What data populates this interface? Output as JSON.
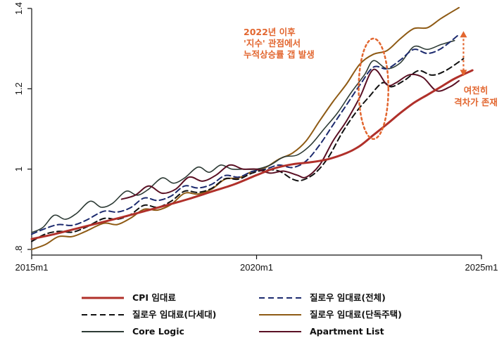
{
  "chart_data": {
    "type": "line",
    "xlim": [
      2015.0,
      2025.0
    ],
    "ylim": [
      0.8,
      1.4
    ],
    "xticks": [
      {
        "value": 2015.0,
        "label": "2015m1"
      },
      {
        "value": 2020.0,
        "label": "2020m1"
      },
      {
        "value": 2025.0,
        "label": "2025m1"
      }
    ],
    "yticks": [
      {
        "value": 0.8,
        "label": ".8"
      },
      {
        "value": 1.0,
        "label": "1"
      },
      {
        "value": 1.2,
        "label": "1.2"
      },
      {
        "value": 1.4,
        "label": "1.4"
      }
    ],
    "grid": false,
    "legend_position": "bottom",
    "series": [
      {
        "name": "CPI 임대료",
        "color": "#b0302a",
        "dash": "solid",
        "width": 3,
        "points": [
          [
            2015.0,
            0.826
          ],
          [
            2015.5,
            0.838
          ],
          [
            2016.0,
            0.852
          ],
          [
            2016.5,
            0.866
          ],
          [
            2017.0,
            0.88
          ],
          [
            2017.5,
            0.895
          ],
          [
            2018.0,
            0.91
          ],
          [
            2018.5,
            0.926
          ],
          [
            2019.0,
            0.944
          ],
          [
            2019.5,
            0.962
          ],
          [
            2020.0,
            0.985
          ],
          [
            2020.4,
            1.002
          ],
          [
            2020.8,
            1.012
          ],
          [
            2021.2,
            1.017
          ],
          [
            2021.6,
            1.025
          ],
          [
            2022.0,
            1.04
          ],
          [
            2022.3,
            1.058
          ],
          [
            2022.6,
            1.085
          ],
          [
            2022.9,
            1.112
          ],
          [
            2023.2,
            1.14
          ],
          [
            2023.5,
            1.165
          ],
          [
            2023.8,
            1.185
          ],
          [
            2024.1,
            1.205
          ],
          [
            2024.4,
            1.225
          ],
          [
            2024.8,
            1.246
          ]
        ]
      },
      {
        "name": "질로우 임대료(전체)",
        "color": "#1c2a6e",
        "dash": "8,5",
        "width": 2,
        "points": [
          [
            2015.0,
            0.838
          ],
          [
            2015.3,
            0.852
          ],
          [
            2015.6,
            0.862
          ],
          [
            2015.9,
            0.86
          ],
          [
            2016.2,
            0.872
          ],
          [
            2016.6,
            0.895
          ],
          [
            2016.9,
            0.893
          ],
          [
            2017.2,
            0.904
          ],
          [
            2017.5,
            0.928
          ],
          [
            2017.8,
            0.922
          ],
          [
            2018.1,
            0.933
          ],
          [
            2018.4,
            0.958
          ],
          [
            2018.7,
            0.953
          ],
          [
            2019.0,
            0.962
          ],
          [
            2019.3,
            0.984
          ],
          [
            2019.6,
            0.98
          ],
          [
            2019.9,
            0.994
          ],
          [
            2020.2,
            1.0
          ],
          [
            2020.5,
            1.01
          ],
          [
            2020.8,
            1.004
          ],
          [
            2021.1,
            1.02
          ],
          [
            2021.4,
            1.06
          ],
          [
            2021.7,
            1.11
          ],
          [
            2022.0,
            1.16
          ],
          [
            2022.3,
            1.21
          ],
          [
            2022.6,
            1.254
          ],
          [
            2022.9,
            1.25
          ],
          [
            2023.2,
            1.272
          ],
          [
            2023.5,
            1.298
          ],
          [
            2023.8,
            1.288
          ],
          [
            2024.1,
            1.3
          ],
          [
            2024.5,
            1.335
          ]
        ]
      },
      {
        "name": "질로우 임대료(다세대)",
        "color": "#111111",
        "dash": "8,5",
        "width": 2,
        "points": [
          [
            2015.0,
            0.82
          ],
          [
            2015.3,
            0.838
          ],
          [
            2015.6,
            0.845
          ],
          [
            2015.9,
            0.843
          ],
          [
            2016.2,
            0.855
          ],
          [
            2016.6,
            0.877
          ],
          [
            2016.9,
            0.875
          ],
          [
            2017.2,
            0.887
          ],
          [
            2017.5,
            0.91
          ],
          [
            2017.8,
            0.905
          ],
          [
            2018.1,
            0.92
          ],
          [
            2018.4,
            0.945
          ],
          [
            2018.7,
            0.942
          ],
          [
            2019.0,
            0.952
          ],
          [
            2019.3,
            0.976
          ],
          [
            2019.6,
            0.975
          ],
          [
            2019.9,
            0.99
          ],
          [
            2020.2,
            0.998
          ],
          [
            2020.5,
            0.995
          ],
          [
            2020.8,
            0.975
          ],
          [
            2021.0,
            0.972
          ],
          [
            2021.3,
            0.99
          ],
          [
            2021.6,
            1.03
          ],
          [
            2021.9,
            1.09
          ],
          [
            2022.2,
            1.14
          ],
          [
            2022.5,
            1.18
          ],
          [
            2022.8,
            1.215
          ],
          [
            2023.0,
            1.205
          ],
          [
            2023.3,
            1.222
          ],
          [
            2023.6,
            1.245
          ],
          [
            2023.9,
            1.234
          ],
          [
            2024.2,
            1.245
          ],
          [
            2024.6,
            1.275
          ]
        ]
      },
      {
        "name": "질로우 임대료(단독주택)",
        "color": "#8e5a14",
        "dash": "solid",
        "width": 2,
        "points": [
          [
            2015.0,
            0.8
          ],
          [
            2015.3,
            0.812
          ],
          [
            2015.6,
            0.832
          ],
          [
            2015.9,
            0.832
          ],
          [
            2016.2,
            0.845
          ],
          [
            2016.6,
            0.865
          ],
          [
            2016.9,
            0.862
          ],
          [
            2017.2,
            0.878
          ],
          [
            2017.5,
            0.9
          ],
          [
            2017.8,
            0.898
          ],
          [
            2018.1,
            0.912
          ],
          [
            2018.4,
            0.94
          ],
          [
            2018.7,
            0.938
          ],
          [
            2019.0,
            0.95
          ],
          [
            2019.3,
            0.975
          ],
          [
            2019.6,
            0.978
          ],
          [
            2019.9,
            0.994
          ],
          [
            2020.2,
            1.004
          ],
          [
            2020.5,
            1.025
          ],
          [
            2020.8,
            1.04
          ],
          [
            2021.1,
            1.07
          ],
          [
            2021.4,
            1.12
          ],
          [
            2021.7,
            1.168
          ],
          [
            2022.0,
            1.212
          ],
          [
            2022.3,
            1.262
          ],
          [
            2022.6,
            1.286
          ],
          [
            2022.9,
            1.295
          ],
          [
            2023.2,
            1.325
          ],
          [
            2023.5,
            1.35
          ],
          [
            2023.8,
            1.352
          ],
          [
            2024.1,
            1.375
          ],
          [
            2024.5,
            1.402
          ]
        ]
      },
      {
        "name": "Core Logic",
        "color": "#2d3b35",
        "dash": "solid",
        "width": 1.6,
        "points": [
          [
            2015.0,
            0.842
          ],
          [
            2015.25,
            0.855
          ],
          [
            2015.5,
            0.885
          ],
          [
            2015.75,
            0.875
          ],
          [
            2016.0,
            0.89
          ],
          [
            2016.3,
            0.92
          ],
          [
            2016.55,
            0.905
          ],
          [
            2016.8,
            0.915
          ],
          [
            2017.1,
            0.945
          ],
          [
            2017.35,
            0.935
          ],
          [
            2017.6,
            0.95
          ],
          [
            2017.9,
            0.978
          ],
          [
            2018.15,
            0.965
          ],
          [
            2018.4,
            0.978
          ],
          [
            2018.7,
            1.005
          ],
          [
            2018.95,
            0.992
          ],
          [
            2019.2,
            1.01
          ],
          [
            2019.45,
            1.0
          ],
          [
            2019.7,
            1.0
          ],
          [
            2020.0,
            1.0
          ],
          [
            2020.3,
            1.01
          ],
          [
            2020.6,
            1.03
          ],
          [
            2020.9,
            1.035
          ],
          [
            2021.2,
            1.06
          ],
          [
            2021.5,
            1.1
          ],
          [
            2021.8,
            1.14
          ],
          [
            2022.1,
            1.19
          ],
          [
            2022.4,
            1.235
          ],
          [
            2022.6,
            1.27
          ],
          [
            2022.9,
            1.25
          ],
          [
            2023.2,
            1.265
          ],
          [
            2023.5,
            1.305
          ],
          [
            2023.8,
            1.298
          ],
          [
            2024.1,
            1.31
          ],
          [
            2024.4,
            1.32
          ]
        ]
      },
      {
        "name": "Apartment List",
        "color": "#5a1024",
        "dash": "solid",
        "width": 2,
        "points": [
          [
            2017.0,
            0.925
          ],
          [
            2017.3,
            0.935
          ],
          [
            2017.6,
            0.958
          ],
          [
            2017.9,
            0.94
          ],
          [
            2018.2,
            0.95
          ],
          [
            2018.5,
            0.98
          ],
          [
            2018.8,
            0.97
          ],
          [
            2019.1,
            0.985
          ],
          [
            2019.4,
            1.01
          ],
          [
            2019.7,
            1.0
          ],
          [
            2020.0,
            1.0
          ],
          [
            2020.3,
            0.99
          ],
          [
            2020.6,
            0.995
          ],
          [
            2020.9,
            0.985
          ],
          [
            2021.1,
            0.98
          ],
          [
            2021.4,
            1.01
          ],
          [
            2021.7,
            1.07
          ],
          [
            2022.0,
            1.12
          ],
          [
            2022.3,
            1.18
          ],
          [
            2022.6,
            1.248
          ],
          [
            2022.9,
            1.21
          ],
          [
            2023.1,
            1.215
          ],
          [
            2023.4,
            1.235
          ],
          [
            2023.7,
            1.228
          ],
          [
            2024.0,
            1.195
          ],
          [
            2024.3,
            1.205
          ],
          [
            2024.5,
            1.22
          ]
        ]
      }
    ],
    "annotations": [
      {
        "text_lines": [
          "2022년 이후",
          "'지수' 관점에서",
          "누적상승률 갭 발생"
        ],
        "color": "#e2662f"
      },
      {
        "text_lines": [
          "여전히",
          "격차가 존재"
        ],
        "color": "#e2662f"
      }
    ],
    "highlight_ellipse": {
      "cx": 2022.6,
      "cy": 1.2,
      "rx": 0.33,
      "ry": 0.125
    },
    "gap_arrow": {
      "x": 2024.6,
      "y_from": 1.235,
      "y_to": 1.34
    }
  }
}
